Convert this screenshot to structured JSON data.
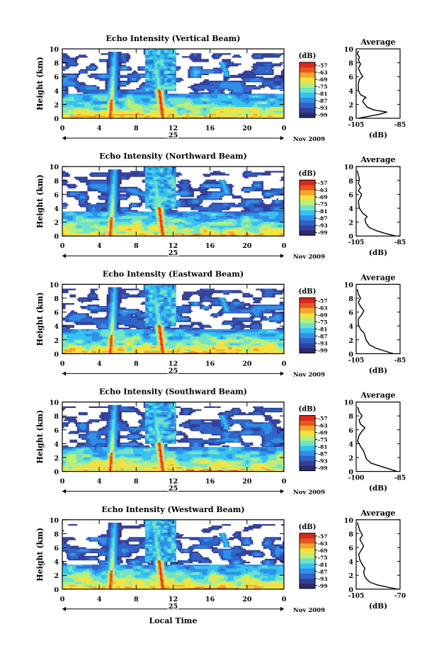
{
  "figure": {
    "x_common_label": "Local Time",
    "date_suffix": "Nov 2009",
    "day_label": "25"
  },
  "chart_data": [
    {
      "type": "heatmap",
      "title": "Echo Intensity (Vertical Beam)",
      "ylabel": "Height (km)",
      "xlim": [
        0,
        24
      ],
      "ylim": [
        0,
        10
      ],
      "x_ticks": [
        "0",
        "4",
        "8",
        "12",
        "16",
        "20",
        "0"
      ],
      "y_ticks": [
        "0",
        "2",
        "4",
        "6",
        "8",
        "10"
      ],
      "colorbar": {
        "label": "(dB)",
        "ticks": [
          "-57",
          "-63",
          "-69",
          "-75",
          "-81",
          "-87",
          "-93",
          "-99"
        ]
      },
      "average": {
        "title": "Average",
        "xlabel": "(dB)",
        "xlim": [
          -105,
          -85
        ],
        "x_ticks": [
          "-105",
          "-85"
        ],
        "y_ticks": [
          "0",
          "2",
          "4",
          "6",
          "8",
          "10"
        ],
        "profile": [
          [
            -104,
            0
          ],
          [
            -99,
            0.3
          ],
          [
            -94,
            0.6
          ],
          [
            -91,
            0.9
          ],
          [
            -97,
            1.2
          ],
          [
            -100,
            1.6
          ],
          [
            -101,
            2.0
          ],
          [
            -102,
            2.4
          ],
          [
            -101.5,
            2.8
          ],
          [
            -100.5,
            3.0
          ],
          [
            -103,
            3.4
          ],
          [
            -104,
            4.0
          ],
          [
            -104,
            5.0
          ],
          [
            -103.5,
            5.6
          ],
          [
            -102,
            6.0
          ],
          [
            -103,
            6.5
          ],
          [
            -104,
            7.2
          ],
          [
            -103,
            7.8
          ],
          [
            -104,
            8.4
          ],
          [
            -103.5,
            8.8
          ],
          [
            -104.5,
            9.3
          ],
          [
            -104,
            9.7
          ]
        ]
      }
    },
    {
      "type": "heatmap",
      "title": "Echo Intensity (Northward Beam)",
      "ylabel": "Height (km)",
      "xlim": [
        0,
        24
      ],
      "ylim": [
        0,
        10
      ],
      "x_ticks": [
        "0",
        "4",
        "8",
        "12",
        "16",
        "20",
        "0"
      ],
      "y_ticks": [
        "0",
        "2",
        "4",
        "6",
        "8",
        "10"
      ],
      "colorbar": {
        "label": "(dB)",
        "ticks": [
          "-57",
          "-63",
          "-69",
          "-75",
          "-81",
          "-87",
          "-93",
          "-99"
        ]
      },
      "average": {
        "title": "Average",
        "xlabel": "(dB)",
        "xlim": [
          -105,
          -85
        ],
        "x_ticks": [
          "-105",
          "-85"
        ],
        "y_ticks": [
          "0",
          "2",
          "4",
          "6",
          "8",
          "10"
        ],
        "profile": [
          [
            -87,
            0
          ],
          [
            -92,
            0.4
          ],
          [
            -96,
            0.8
          ],
          [
            -99,
            1.2
          ],
          [
            -100.5,
            1.8
          ],
          [
            -101,
            2.4
          ],
          [
            -100,
            2.8
          ],
          [
            -102,
            3.3
          ],
          [
            -103.5,
            4.0
          ],
          [
            -104,
            5.0
          ],
          [
            -103,
            5.6
          ],
          [
            -102.5,
            6.0
          ],
          [
            -104,
            6.5
          ],
          [
            -103,
            7.0
          ],
          [
            -104,
            7.6
          ],
          [
            -103.5,
            8.2
          ],
          [
            -104,
            8.8
          ],
          [
            -104.5,
            9.4
          ]
        ]
      }
    },
    {
      "type": "heatmap",
      "title": "Echo Intensity (Eastward Beam)",
      "ylabel": "Height (km)",
      "xlim": [
        0,
        24
      ],
      "ylim": [
        0,
        10
      ],
      "x_ticks": [
        "0",
        "4",
        "8",
        "12",
        "16",
        "20",
        "0"
      ],
      "y_ticks": [
        "0",
        "2",
        "4",
        "6",
        "8",
        "10"
      ],
      "colorbar": {
        "label": "(dB)",
        "ticks": [
          "-57",
          "-63",
          "-69",
          "-75",
          "-81",
          "-87",
          "-93",
          "-99"
        ]
      },
      "average": {
        "title": "Average",
        "xlabel": "(dB)",
        "xlim": [
          -105,
          -85
        ],
        "x_ticks": [
          "-105",
          "-85"
        ],
        "y_ticks": [
          "0",
          "2",
          "4",
          "6",
          "8",
          "10"
        ],
        "profile": [
          [
            -88,
            0
          ],
          [
            -92,
            0.4
          ],
          [
            -96,
            0.8
          ],
          [
            -99,
            1.3
          ],
          [
            -100.5,
            2.0
          ],
          [
            -101,
            2.6
          ],
          [
            -101.5,
            3.0
          ],
          [
            -103,
            3.5
          ],
          [
            -104,
            4.2
          ],
          [
            -104,
            5.0
          ],
          [
            -102.5,
            5.6
          ],
          [
            -101.5,
            6.2
          ],
          [
            -103,
            6.8
          ],
          [
            -104,
            7.4
          ],
          [
            -103,
            8.0
          ],
          [
            -104,
            8.6
          ],
          [
            -104.5,
            9.3
          ]
        ]
      }
    },
    {
      "type": "heatmap",
      "title": "Echo Intensity (Southward Beam)",
      "ylabel": "Height (km)",
      "xlim": [
        0,
        24
      ],
      "ylim": [
        0,
        10
      ],
      "x_ticks": [
        "0",
        "4",
        "8",
        "12",
        "16",
        "20",
        "0"
      ],
      "y_ticks": [
        "0",
        "2",
        "4",
        "6",
        "8",
        "10"
      ],
      "colorbar": {
        "label": "(dB)",
        "ticks": [
          "-57",
          "-63",
          "-69",
          "-75",
          "-81",
          "-87",
          "-93",
          "-99"
        ]
      },
      "average": {
        "title": "Average",
        "xlabel": "(dB)",
        "xlim": [
          -100,
          -85
        ],
        "x_ticks": [
          "-100",
          "-85"
        ],
        "y_ticks": [
          "0",
          "2",
          "4",
          "6",
          "8",
          "10"
        ],
        "profile": [
          [
            -86,
            0
          ],
          [
            -89,
            0.4
          ],
          [
            -92,
            0.8
          ],
          [
            -95,
            1.2
          ],
          [
            -96.5,
            1.8
          ],
          [
            -97,
            2.4
          ],
          [
            -97.5,
            3.0
          ],
          [
            -98.5,
            3.6
          ],
          [
            -99.5,
            4.4
          ],
          [
            -99,
            5.2
          ],
          [
            -98,
            5.8
          ],
          [
            -97,
            6.3
          ],
          [
            -98.5,
            6.8
          ],
          [
            -99,
            7.4
          ],
          [
            -98,
            8.0
          ],
          [
            -99,
            8.6
          ],
          [
            -99.5,
            9.3
          ]
        ]
      }
    },
    {
      "type": "heatmap",
      "title": "Echo Intensity (Westward Beam)",
      "ylabel": "Height (km)",
      "xlim": [
        0,
        24
      ],
      "ylim": [
        0,
        10
      ],
      "x_ticks": [
        "0",
        "4",
        "8",
        "12",
        "16",
        "20",
        "0"
      ],
      "y_ticks": [
        "0",
        "2",
        "4",
        "6",
        "8",
        "10"
      ],
      "colorbar": {
        "label": "(dB)",
        "ticks": [
          "-57",
          "-63",
          "-69",
          "-75",
          "-81",
          "-87",
          "-93",
          "-99"
        ]
      },
      "average": {
        "title": "Average",
        "xlabel": "(dB)",
        "xlim": [
          -105,
          -70
        ],
        "x_ticks": [
          "-105",
          "-70"
        ],
        "y_ticks": [
          "0",
          "2",
          "4",
          "6",
          "8",
          "10"
        ],
        "profile": [
          [
            -72,
            0
          ],
          [
            -80,
            0.3
          ],
          [
            -88,
            0.6
          ],
          [
            -94,
            1.0
          ],
          [
            -97,
            1.5
          ],
          [
            -98.5,
            2.0
          ],
          [
            -99,
            2.5
          ],
          [
            -98,
            3.0
          ],
          [
            -100,
            3.5
          ],
          [
            -102,
            4.2
          ],
          [
            -103,
            5.0
          ],
          [
            -101,
            5.6
          ],
          [
            -99,
            6.2
          ],
          [
            -101,
            6.8
          ],
          [
            -102,
            7.2
          ],
          [
            -100,
            7.8
          ],
          [
            -102,
            8.4
          ],
          [
            -103,
            9.0
          ],
          [
            -104,
            9.6
          ]
        ]
      }
    }
  ],
  "colors": {
    "colormap": [
      "#2b2b6e",
      "#34409a",
      "#2e64c8",
      "#2f8fe6",
      "#35c2f0",
      "#6fe3c7",
      "#b8ee7a",
      "#f6e13c",
      "#f4a52c",
      "#e8561f",
      "#d8291a"
    ]
  }
}
